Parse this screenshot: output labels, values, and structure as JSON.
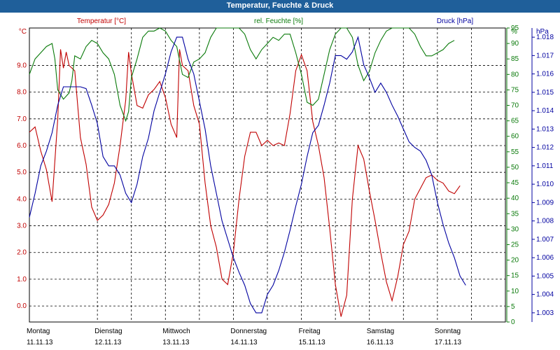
{
  "header": {
    "title": "Temperatur, Feuchte & Druck"
  },
  "colors": {
    "temperature": "#c00000",
    "humidity": "#0a7a0a",
    "pressure": "#0000a0",
    "title_bar": "#1f5f9a"
  },
  "chart_data": {
    "type": "line",
    "title": "Temperatur, Feuchte & Druck",
    "axes": {
      "left": {
        "unit": "°C",
        "label": "Temperatur [°C]",
        "ylim": [
          -0.6,
          10.4
        ],
        "ticks": [
          "0.0",
          "1.0",
          "2.0",
          "3.0",
          "4.0",
          "5.0",
          "6.0",
          "7.0",
          "8.0",
          "9.0"
        ]
      },
      "humidity": {
        "unit": "%",
        "label": "rel. Feuchte [%]",
        "ylim": [
          0,
          95
        ],
        "ticks": [
          "0",
          "5",
          "10",
          "15",
          "20",
          "25",
          "30",
          "35",
          "40",
          "45",
          "50",
          "55",
          "60",
          "65",
          "70",
          "75",
          "80",
          "85",
          "90",
          "95"
        ]
      },
      "pressure": {
        "unit": "hPa",
        "label": "Druck [hPa]",
        "ylim": [
          1.0025,
          1.0185
        ],
        "ticks": [
          "1.003",
          "1.004",
          "1.005",
          "1.006",
          "1.007",
          "1.008",
          "1.009",
          "1.010",
          "1.011",
          "1.012",
          "1.013",
          "1.014",
          "1.015",
          "1.016",
          "1.017",
          "1.018"
        ]
      }
    },
    "x": {
      "range": [
        0,
        168
      ],
      "days": [
        {
          "name": "Montag",
          "date": "11.11.13"
        },
        {
          "name": "Dienstag",
          "date": "12.11.13"
        },
        {
          "name": "Mittwoch",
          "date": "13.11.13"
        },
        {
          "name": "Donnerstag",
          "date": "14.11.13"
        },
        {
          "name": "Freitag",
          "date": "15.11.13"
        },
        {
          "name": "Samstag",
          "date": "16.11.13"
        },
        {
          "name": "Sonntag",
          "date": "17.11.13"
        }
      ]
    },
    "series": [
      {
        "name": "Temperatur",
        "axis": "left",
        "points": [
          [
            0,
            6.5
          ],
          [
            2,
            6.7
          ],
          [
            4,
            5.8
          ],
          [
            6,
            5.1
          ],
          [
            8,
            3.9
          ],
          [
            10,
            7.0
          ],
          [
            11,
            9.6
          ],
          [
            12,
            8.9
          ],
          [
            13,
            9.5
          ],
          [
            14,
            9.0
          ],
          [
            16,
            8.8
          ],
          [
            18,
            6.3
          ],
          [
            20,
            5.3
          ],
          [
            22,
            3.7
          ],
          [
            24,
            3.2
          ],
          [
            26,
            3.4
          ],
          [
            28,
            3.8
          ],
          [
            30,
            4.6
          ],
          [
            32,
            6.0
          ],
          [
            34,
            7.7
          ],
          [
            35,
            9.5
          ],
          [
            36,
            8.7
          ],
          [
            38,
            7.5
          ],
          [
            40,
            7.4
          ],
          [
            42,
            7.9
          ],
          [
            44,
            8.1
          ],
          [
            46,
            8.4
          ],
          [
            48,
            7.8
          ],
          [
            50,
            6.8
          ],
          [
            52,
            6.3
          ],
          [
            53,
            9.6
          ],
          [
            54,
            9.0
          ],
          [
            56,
            8.8
          ],
          [
            58,
            7.5
          ],
          [
            60,
            6.8
          ],
          [
            62,
            4.6
          ],
          [
            64,
            3.0
          ],
          [
            66,
            2.2
          ],
          [
            68,
            1.0
          ],
          [
            70,
            0.8
          ],
          [
            72,
            2.0
          ],
          [
            74,
            4.0
          ],
          [
            76,
            5.6
          ],
          [
            78,
            6.5
          ],
          [
            80,
            6.5
          ],
          [
            82,
            6.0
          ],
          [
            84,
            6.2
          ],
          [
            86,
            6.0
          ],
          [
            88,
            6.1
          ],
          [
            90,
            6.0
          ],
          [
            92,
            7.2
          ],
          [
            94,
            8.8
          ],
          [
            96,
            9.4
          ],
          [
            98,
            8.8
          ],
          [
            100,
            6.9
          ],
          [
            102,
            6.0
          ],
          [
            104,
            4.8
          ],
          [
            106,
            2.9
          ],
          [
            108,
            0.8
          ],
          [
            110,
            -0.4
          ],
          [
            112,
            0.4
          ],
          [
            114,
            4.0
          ],
          [
            116,
            6.0
          ],
          [
            118,
            5.5
          ],
          [
            120,
            4.3
          ],
          [
            122,
            3.2
          ],
          [
            124,
            2.0
          ],
          [
            126,
            0.9
          ],
          [
            128,
            0.2
          ],
          [
            130,
            1.1
          ],
          [
            132,
            2.3
          ],
          [
            134,
            2.8
          ],
          [
            136,
            4.0
          ],
          [
            138,
            4.4
          ],
          [
            140,
            4.8
          ],
          [
            142,
            4.9
          ],
          [
            144,
            4.7
          ],
          [
            146,
            4.6
          ],
          [
            148,
            4.3
          ],
          [
            150,
            4.2
          ],
          [
            152,
            4.5
          ]
        ]
      },
      {
        "name": "rel. Feuchte",
        "axis": "humidity",
        "points": [
          [
            0,
            80
          ],
          [
            2,
            85
          ],
          [
            4,
            87
          ],
          [
            6,
            89
          ],
          [
            8,
            90
          ],
          [
            9,
            85
          ],
          [
            10,
            75
          ],
          [
            12,
            72
          ],
          [
            14,
            74
          ],
          [
            15,
            78
          ],
          [
            16,
            86
          ],
          [
            18,
            85
          ],
          [
            20,
            89
          ],
          [
            22,
            91
          ],
          [
            24,
            90
          ],
          [
            26,
            87
          ],
          [
            28,
            85
          ],
          [
            30,
            80
          ],
          [
            32,
            70
          ],
          [
            34,
            65
          ],
          [
            35,
            68
          ],
          [
            36,
            79
          ],
          [
            38,
            85
          ],
          [
            40,
            92
          ],
          [
            42,
            94
          ],
          [
            44,
            94
          ],
          [
            46,
            95
          ],
          [
            48,
            94
          ],
          [
            50,
            91
          ],
          [
            52,
            89
          ],
          [
            54,
            80
          ],
          [
            56,
            79
          ],
          [
            58,
            84
          ],
          [
            60,
            85
          ],
          [
            62,
            87
          ],
          [
            64,
            92
          ],
          [
            66,
            95
          ],
          [
            68,
            95
          ],
          [
            70,
            95
          ],
          [
            72,
            95
          ],
          [
            74,
            95
          ],
          [
            76,
            93
          ],
          [
            78,
            88
          ],
          [
            80,
            85
          ],
          [
            82,
            88
          ],
          [
            84,
            90
          ],
          [
            86,
            92
          ],
          [
            88,
            91
          ],
          [
            90,
            93
          ],
          [
            92,
            93
          ],
          [
            94,
            87
          ],
          [
            96,
            80
          ],
          [
            98,
            71
          ],
          [
            100,
            70
          ],
          [
            102,
            72
          ],
          [
            104,
            80
          ],
          [
            106,
            88
          ],
          [
            108,
            93
          ],
          [
            110,
            95
          ],
          [
            112,
            95
          ],
          [
            114,
            92
          ],
          [
            116,
            83
          ],
          [
            118,
            78
          ],
          [
            120,
            81
          ],
          [
            122,
            87
          ],
          [
            124,
            91
          ],
          [
            126,
            94
          ],
          [
            128,
            95
          ],
          [
            130,
            95
          ],
          [
            132,
            95
          ],
          [
            134,
            95
          ],
          [
            136,
            93
          ],
          [
            138,
            89
          ],
          [
            140,
            86
          ],
          [
            142,
            86
          ],
          [
            144,
            87
          ],
          [
            146,
            88
          ],
          [
            148,
            90
          ],
          [
            150,
            91
          ]
        ]
      },
      {
        "name": "Druck",
        "axis": "pressure",
        "points": [
          [
            0,
            1.0082
          ],
          [
            2,
            1.0095
          ],
          [
            4,
            1.011
          ],
          [
            6,
            1.0118
          ],
          [
            8,
            1.0128
          ],
          [
            10,
            1.0143
          ],
          [
            12,
            1.0153
          ],
          [
            14,
            1.0153
          ],
          [
            16,
            1.0153
          ],
          [
            18,
            1.0153
          ],
          [
            20,
            1.0152
          ],
          [
            22,
            1.0143
          ],
          [
            24,
            1.0133
          ],
          [
            26,
            1.0115
          ],
          [
            28,
            1.011
          ],
          [
            30,
            1.011
          ],
          [
            32,
            1.0105
          ],
          [
            34,
            1.0095
          ],
          [
            36,
            1.009
          ],
          [
            38,
            1.01
          ],
          [
            40,
            1.0115
          ],
          [
            42,
            1.0125
          ],
          [
            44,
            1.014
          ],
          [
            46,
            1.015
          ],
          [
            48,
            1.016
          ],
          [
            50,
            1.0172
          ],
          [
            52,
            1.018
          ],
          [
            54,
            1.018
          ],
          [
            56,
            1.0168
          ],
          [
            58,
            1.016
          ],
          [
            60,
            1.0145
          ],
          [
            62,
            1.013
          ],
          [
            64,
            1.011
          ],
          [
            66,
            1.0095
          ],
          [
            68,
            1.008
          ],
          [
            70,
            1.007
          ],
          [
            72,
            1.006
          ],
          [
            74,
            1.0052
          ],
          [
            76,
            1.0045
          ],
          [
            78,
            1.0035
          ],
          [
            80,
            1.003
          ],
          [
            82,
            1.003
          ],
          [
            84,
            1.004
          ],
          [
            86,
            1.0045
          ],
          [
            88,
            1.0053
          ],
          [
            90,
            1.0063
          ],
          [
            92,
            1.0075
          ],
          [
            94,
            1.0088
          ],
          [
            96,
            1.01
          ],
          [
            98,
            1.0115
          ],
          [
            100,
            1.0128
          ],
          [
            102,
            1.0132
          ],
          [
            104,
            1.0143
          ],
          [
            106,
            1.0155
          ],
          [
            108,
            1.017
          ],
          [
            110,
            1.017
          ],
          [
            112,
            1.0168
          ],
          [
            114,
            1.0172
          ],
          [
            116,
            1.018
          ],
          [
            118,
            1.0165
          ],
          [
            120,
            1.0158
          ],
          [
            122,
            1.015
          ],
          [
            124,
            1.0155
          ],
          [
            126,
            1.015
          ],
          [
            128,
            1.0143
          ],
          [
            130,
            1.0137
          ],
          [
            132,
            1.013
          ],
          [
            134,
            1.0123
          ],
          [
            136,
            1.012
          ],
          [
            138,
            1.0118
          ],
          [
            140,
            1.0113
          ],
          [
            142,
            1.0105
          ],
          [
            144,
            1.009
          ],
          [
            146,
            1.0078
          ],
          [
            148,
            1.0068
          ],
          [
            150,
            1.006
          ],
          [
            152,
            1.005
          ],
          [
            154,
            1.0045
          ]
        ]
      }
    ]
  }
}
